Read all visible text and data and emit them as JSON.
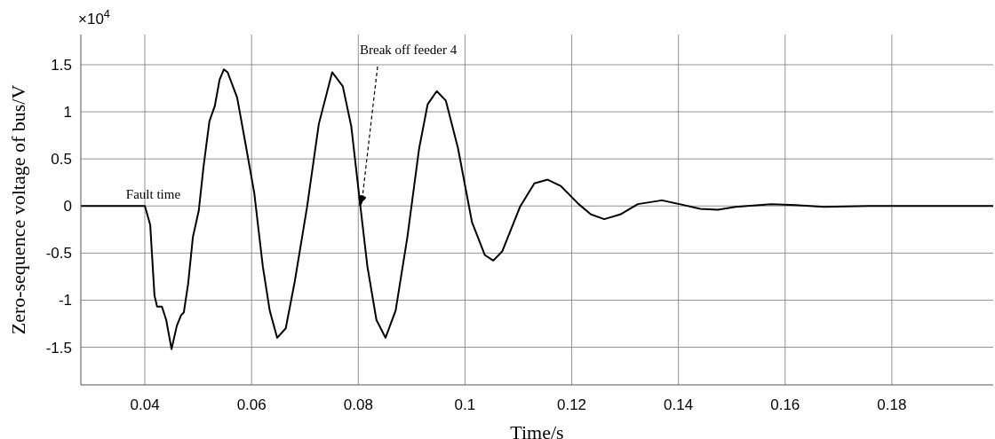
{
  "chart_data": {
    "type": "line",
    "xlabel": "Time/s",
    "ylabel": "Zero-sequence voltage of bus/V",
    "annotations": [
      "×10$^{4}$",
      {
        "text": "Fault time",
        "x": 0.04,
        "y": 0
      },
      "Break off feeder 4"
    ],
    "series": [
      {
        "color": "#000000",
        "x": [
          0.028,
          0.034,
          0.04,
          0.041,
          0.0418,
          0.0423,
          0.0432,
          0.044,
          0.045,
          0.046,
          0.0468,
          0.0473,
          0.0481,
          0.049,
          0.0501,
          0.051,
          0.0521,
          0.0531,
          0.054,
          0.0548,
          0.0555,
          0.0565,
          0.0573,
          0.0588,
          0.0605,
          0.0621,
          0.0634,
          0.0648,
          0.0664,
          0.0681,
          0.0704,
          0.0726,
          0.0751,
          0.0771,
          0.0787,
          0.0801,
          0.0817,
          0.0834,
          0.0851,
          0.087,
          0.0892,
          0.0914,
          0.093,
          0.0947,
          0.0964,
          0.0987,
          0.1013,
          0.1037,
          0.1053,
          0.107,
          0.1103,
          0.113,
          0.1155,
          0.118,
          0.1213,
          0.1236,
          0.1261,
          0.1291,
          0.1324,
          0.1369,
          0.1402,
          0.1441,
          0.1474,
          0.1507,
          0.1574,
          0.1619,
          0.1673,
          0.1757,
          0.19,
          0.199
        ],
        "values": [
          0,
          0,
          0,
          -0.2,
          -0.95,
          -1.07,
          -1.07,
          -1.21,
          -1.52,
          -1.27,
          -1.16,
          -1.13,
          -0.83,
          -0.33,
          -0.05,
          0.42,
          0.9,
          1.06,
          1.34,
          1.45,
          1.42,
          1.27,
          1.15,
          0.68,
          0.14,
          -0.64,
          -1.11,
          -1.4,
          -1.3,
          -0.8,
          -0.01,
          0.87,
          1.42,
          1.27,
          0.84,
          0.14,
          -0.64,
          -1.21,
          -1.4,
          -1.11,
          -0.33,
          0.61,
          1.08,
          1.22,
          1.12,
          0.61,
          -0.17,
          -0.52,
          -0.58,
          -0.48,
          -0.01,
          0.24,
          0.28,
          0.21,
          0.02,
          -0.09,
          -0.14,
          -0.09,
          0.02,
          0.06,
          0.02,
          -0.03,
          -0.04,
          -0.01,
          0.02,
          0.01,
          -0.01,
          0,
          0,
          0
        ]
      }
    ],
    "xlim": [
      0.028,
      0.199
    ],
    "xticks": [
      0.04,
      0.06,
      0.08,
      0.1,
      0.12,
      0.14,
      0.16,
      0.18
    ],
    "ylim": [
      -1.9,
      1.82
    ],
    "yticks": [
      -1.5,
      -1,
      -0.5,
      0,
      0.5,
      1,
      1.5
    ],
    "grid": true,
    "legend": false,
    "marker": "none",
    "line_style": "solid"
  }
}
